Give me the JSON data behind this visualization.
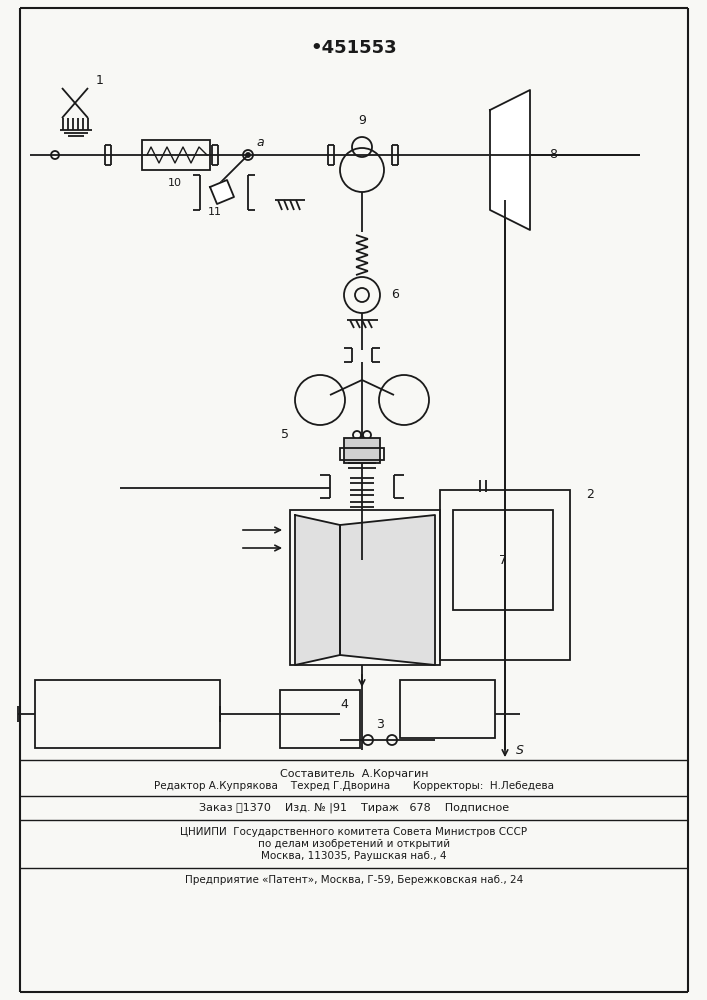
{
  "title": "•451553",
  "bg_color": "#f8f8f5",
  "line_color": "#1a1a1a",
  "footer": {
    "sestavitel": "Составитель  А.Корчагин",
    "row2": "Редактор А.Купрякова    Техред Г.Дворина       Корректоры:  Н.Лебедева",
    "row3": "Заказ ፰1370    Изд. № |91    Тираж   678    Подписное",
    "row4": "ЦНИИПИ  Государственного комитета Совета Министров СССР",
    "row5": "по делам изобретений и открытий",
    "row6": "Москва, 113035, Раушская наб., 4",
    "row7": "Предприятие «Патент», Москва, Г-59, Бережковская наб., 24"
  }
}
